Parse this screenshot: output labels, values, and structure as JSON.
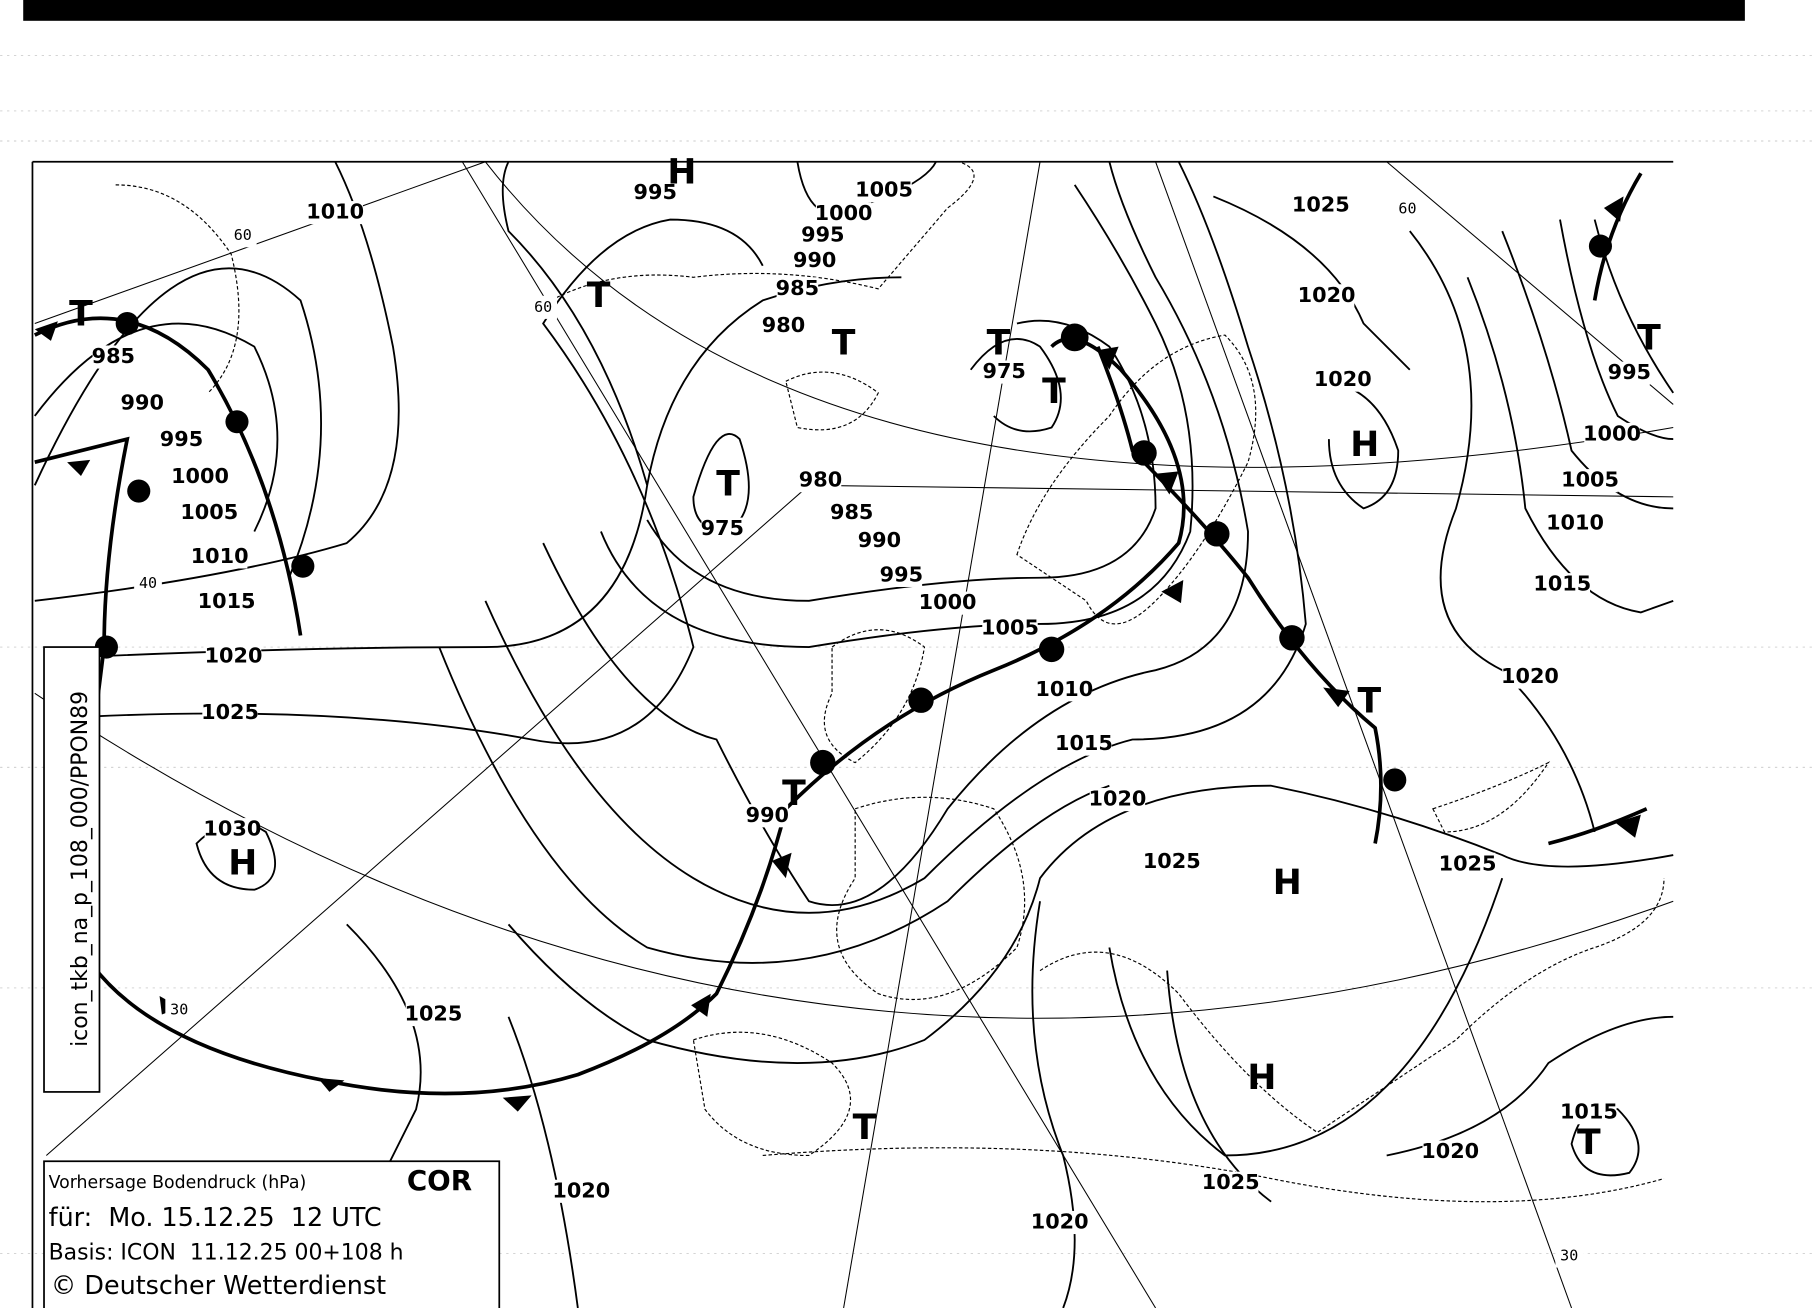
{
  "legend": {
    "title": "Vorhersage Bodendruck (hPa)",
    "flag": "COR",
    "valid": "für:  Mo. 15.12.25  12 UTC",
    "basis": "Basis: ICON  11.12.25 00+108 h",
    "copyright": "© Deutscher Wetterdienst"
  },
  "product_id": "icon_tkb_na_p_108_000/PPON89",
  "isobar_labels": [
    "1010",
    "995",
    "1005",
    "1000",
    "995",
    "990",
    "985",
    "980",
    "1025",
    "1020",
    "1020",
    "985",
    "990",
    "995",
    "1000",
    "1005",
    "1010",
    "1015",
    "1020",
    "1025",
    "1030",
    "975",
    "980",
    "985",
    "990",
    "995",
    "1000",
    "1005",
    "1010",
    "1015",
    "1020",
    "1025",
    "975",
    "990",
    "995",
    "1000",
    "1005",
    "1010",
    "1015",
    "1020",
    "1025",
    "1025",
    "1020",
    "1020",
    "1025",
    "1020",
    "1015"
  ],
  "highs": [
    "H",
    "H",
    "H",
    "H",
    "H"
  ],
  "lows": [
    "T",
    "T",
    "T",
    "T",
    "T",
    "T",
    "T",
    "T",
    "T",
    "T",
    "T"
  ],
  "latitude_labels": [
    "60",
    "60",
    "60",
    "40",
    "30",
    "30"
  ],
  "colors": {
    "ink": "#000000",
    "paper": "#ffffff"
  }
}
